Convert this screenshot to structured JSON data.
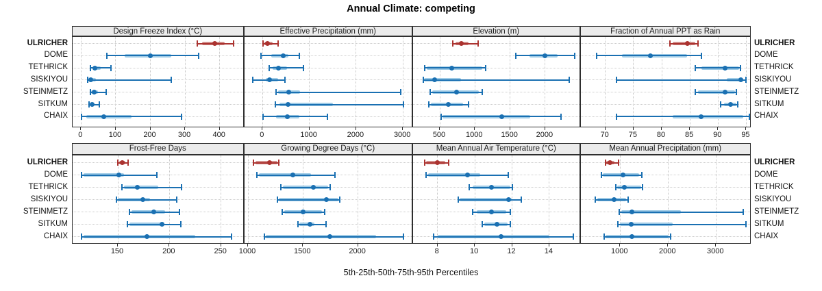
{
  "title": "Annual Climate: competing",
  "caption": "5th-25th-50th-75th-95th Percentiles",
  "percentile_levels": [
    5,
    25,
    50,
    75,
    95
  ],
  "sites": [
    "ULRICHER",
    "DOME",
    "TETHRICK",
    "SISKIYOU",
    "STEINMETZ",
    "SITKUM",
    "CHAIX"
  ],
  "highlight_site": "ULRICHER",
  "colors": {
    "highlight_dark": "#ab3330",
    "highlight_light": "#d28f8c",
    "normal_dark": "#1a70b2",
    "normal_light": "#9fcbe6",
    "strip_bg": "#ebebeb",
    "panel_border": "#2e2e2e",
    "grid": "#c8c8c8"
  },
  "chart_data": [
    {
      "type": "dotplot-percentile",
      "title": "Design Freeze Index (°C)",
      "xticks": [
        0,
        100,
        200,
        300,
        400
      ],
      "xlim": [
        -26,
        470
      ],
      "series": [
        {
          "name": "ULRICHER",
          "highlight": true,
          "percentiles": [
            335,
            350,
            385,
            415,
            440
          ]
        },
        {
          "name": "DOME",
          "highlight": false,
          "percentiles": [
            75,
            125,
            200,
            260,
            340
          ]
        },
        {
          "name": "TETHRICK",
          "highlight": false,
          "percentiles": [
            28,
            33,
            40,
            57,
            86
          ]
        },
        {
          "name": "SISKIYOU",
          "highlight": false,
          "percentiles": [
            20,
            23,
            28,
            42,
            260
          ]
        },
        {
          "name": "STEINMETZ",
          "highlight": false,
          "percentiles": [
            27,
            30,
            38,
            48,
            72
          ]
        },
        {
          "name": "SITKUM",
          "highlight": false,
          "percentiles": [
            23,
            26,
            32,
            38,
            53
          ]
        },
        {
          "name": "CHAIX",
          "highlight": false,
          "percentiles": [
            2,
            15,
            65,
            145,
            290
          ]
        }
      ]
    },
    {
      "type": "dotplot-percentile",
      "title": "Effective Precipitation (mm)",
      "xticks": [
        0,
        1000,
        2000,
        3000
      ],
      "xlim": [
        -365,
        3200
      ],
      "series": [
        {
          "name": "ULRICHER",
          "highlight": true,
          "percentiles": [
            15,
            40,
            110,
            210,
            330
          ]
        },
        {
          "name": "DOME",
          "highlight": false,
          "percentiles": [
            -30,
            185,
            440,
            550,
            780
          ]
        },
        {
          "name": "TETHRICK",
          "highlight": false,
          "percentiles": [
            135,
            210,
            340,
            530,
            880
          ]
        },
        {
          "name": "SISKIYOU",
          "highlight": false,
          "percentiles": [
            -205,
            65,
            150,
            330,
            480
          ]
        },
        {
          "name": "STEINMETZ",
          "highlight": false,
          "percentiles": [
            285,
            330,
            560,
            800,
            2960
          ]
        },
        {
          "name": "SITKUM",
          "highlight": false,
          "percentiles": [
            270,
            360,
            540,
            1500,
            3015
          ]
        },
        {
          "name": "CHAIX",
          "highlight": false,
          "percentiles": [
            15,
            290,
            530,
            780,
            1390
          ]
        }
      ]
    },
    {
      "type": "dotplot-percentile",
      "title": "Elevation (m)",
      "xticks": [
        500,
        1000,
        1500,
        2000
      ],
      "xlim": [
        130,
        2510
      ],
      "series": [
        {
          "name": "ULRICHER",
          "highlight": true,
          "percentiles": [
            690,
            720,
            810,
            910,
            1050
          ]
        },
        {
          "name": "DOME",
          "highlight": false,
          "percentiles": [
            1580,
            1775,
            2000,
            2180,
            2420
          ]
        },
        {
          "name": "TETHRICK",
          "highlight": false,
          "percentiles": [
            285,
            310,
            670,
            1105,
            1150
          ]
        },
        {
          "name": "SISKIYOU",
          "highlight": false,
          "percentiles": [
            265,
            280,
            425,
            800,
            2340
          ]
        },
        {
          "name": "STEINMETZ",
          "highlight": false,
          "percentiles": [
            365,
            395,
            735,
            1060,
            1100
          ]
        },
        {
          "name": "SITKUM",
          "highlight": false,
          "percentiles": [
            345,
            370,
            625,
            830,
            910
          ]
        },
        {
          "name": "CHAIX",
          "highlight": false,
          "percentiles": [
            515,
            540,
            1385,
            1790,
            2230
          ]
        }
      ]
    },
    {
      "type": "dotplot-percentile",
      "title": "Fraction of Annual PPT as Rain",
      "xticks": [
        70,
        75,
        80,
        85,
        90,
        95
      ],
      "xlim": [
        66,
        96
      ],
      "series": [
        {
          "name": "ULRICHER",
          "highlight": true,
          "percentiles": [
            81.5,
            82,
            84.5,
            86,
            86.5
          ]
        },
        {
          "name": "DOME",
          "highlight": false,
          "percentiles": [
            68.5,
            73,
            78,
            84.5,
            87
          ]
        },
        {
          "name": "TETHRICK",
          "highlight": false,
          "percentiles": [
            86,
            87,
            91.3,
            93.7,
            94
          ]
        },
        {
          "name": "SISKIYOU",
          "highlight": false,
          "percentiles": [
            72,
            91.5,
            94,
            94.5,
            94.9
          ]
        },
        {
          "name": "STEINMETZ",
          "highlight": false,
          "percentiles": [
            86,
            86.5,
            91.3,
            93,
            93.3
          ]
        },
        {
          "name": "SITKUM",
          "highlight": false,
          "percentiles": [
            90.5,
            91,
            92.2,
            93.3,
            93.5
          ]
        },
        {
          "name": "CHAIX",
          "highlight": false,
          "percentiles": [
            72,
            82,
            87,
            94.5,
            95.5
          ]
        }
      ]
    },
    {
      "type": "dotplot-percentile",
      "title": "Frost-Free Days",
      "xticks": [
        150,
        200,
        250
      ],
      "xlim": [
        105,
        272
      ],
      "series": [
        {
          "name": "ULRICHER",
          "highlight": true,
          "percentiles": [
            150,
            151,
            154,
            157,
            160
          ]
        },
        {
          "name": "DOME",
          "highlight": false,
          "percentiles": [
            115,
            117,
            151,
            156,
            188
          ]
        },
        {
          "name": "TETHRICK",
          "highlight": false,
          "percentiles": [
            154,
            156,
            169,
            189,
            212
          ]
        },
        {
          "name": "SISKIYOU",
          "highlight": false,
          "percentiles": [
            149,
            150,
            174,
            181,
            207
          ]
        },
        {
          "name": "STEINMETZ",
          "highlight": false,
          "percentiles": [
            161,
            163,
            185,
            196,
            210
          ]
        },
        {
          "name": "SITKUM",
          "highlight": false,
          "percentiles": [
            159,
            161,
            193,
            195,
            211
          ]
        },
        {
          "name": "CHAIX",
          "highlight": false,
          "percentiles": [
            115,
            117,
            178,
            225,
            260
          ]
        }
      ]
    },
    {
      "type": "dotplot-percentile",
      "title": "Growing Degree Days (°C)",
      "xticks": [
        1000,
        1500,
        2000
      ],
      "xlim": [
        980,
        2495
      ],
      "series": [
        {
          "name": "ULRICHER",
          "highlight": true,
          "percentiles": [
            1050,
            1070,
            1195,
            1265,
            1280
          ]
        },
        {
          "name": "DOME",
          "highlight": false,
          "percentiles": [
            1080,
            1100,
            1410,
            1575,
            1790
          ]
        },
        {
          "name": "TETHRICK",
          "highlight": false,
          "percentiles": [
            1300,
            1320,
            1595,
            1730,
            1750
          ]
        },
        {
          "name": "SISKIYOU",
          "highlight": false,
          "percentiles": [
            1265,
            1280,
            1715,
            1820,
            1835
          ]
        },
        {
          "name": "STEINMETZ",
          "highlight": false,
          "percentiles": [
            1310,
            1330,
            1500,
            1675,
            1695
          ]
        },
        {
          "name": "SITKUM",
          "highlight": false,
          "percentiles": [
            1455,
            1470,
            1565,
            1605,
            1710
          ]
        },
        {
          "name": "CHAIX",
          "highlight": false,
          "percentiles": [
            1150,
            1165,
            1745,
            2165,
            2415
          ]
        }
      ]
    },
    {
      "type": "dotplot-percentile",
      "title": "Mean Annual Air Temperature (°C)",
      "xticks": [
        8,
        10,
        12,
        14
      ],
      "xlim": [
        6.7,
        15.7
      ],
      "series": [
        {
          "name": "ULRICHER",
          "highlight": true,
          "percentiles": [
            7.3,
            7.4,
            8.0,
            8.4,
            8.6
          ]
        },
        {
          "name": "DOME",
          "highlight": false,
          "percentiles": [
            7.4,
            7.5,
            9.6,
            10.3,
            11.8
          ]
        },
        {
          "name": "TETHRICK",
          "highlight": false,
          "percentiles": [
            9.7,
            9.9,
            10.9,
            11.9,
            12.0
          ]
        },
        {
          "name": "SISKIYOU",
          "highlight": false,
          "percentiles": [
            9.1,
            9.2,
            11.8,
            12.0,
            12.5
          ]
        },
        {
          "name": "STEINMETZ",
          "highlight": false,
          "percentiles": [
            9.9,
            10.1,
            10.9,
            11.7,
            11.9
          ]
        },
        {
          "name": "SITKUM",
          "highlight": false,
          "percentiles": [
            10.4,
            10.5,
            11.2,
            11.75,
            11.9
          ]
        },
        {
          "name": "CHAIX",
          "highlight": false,
          "percentiles": [
            7.8,
            8.0,
            11.4,
            14.0,
            15.3
          ]
        }
      ]
    },
    {
      "type": "dotplot-percentile",
      "title": "Mean Annual Precipitation (mm)",
      "xticks": [
        1000,
        2000,
        3000
      ],
      "xlim": [
        210,
        3730
      ],
      "series": [
        {
          "name": "ULRICHER",
          "highlight": true,
          "percentiles": [
            690,
            715,
            785,
            875,
            970
          ]
        },
        {
          "name": "DOME",
          "highlight": false,
          "percentiles": [
            605,
            645,
            1065,
            1400,
            1450
          ]
        },
        {
          "name": "TETHRICK",
          "highlight": false,
          "percentiles": [
            905,
            940,
            1090,
            1440,
            1470
          ]
        },
        {
          "name": "SISKIYOU",
          "highlight": false,
          "percentiles": [
            485,
            520,
            875,
            1130,
            1165
          ]
        },
        {
          "name": "STEINMETZ",
          "highlight": false,
          "percentiles": [
            985,
            1020,
            1250,
            2270,
            3570
          ]
        },
        {
          "name": "SITKUM",
          "highlight": false,
          "percentiles": [
            950,
            1000,
            1225,
            2100,
            3630
          ]
        },
        {
          "name": "CHAIX",
          "highlight": false,
          "percentiles": [
            665,
            700,
            1240,
            2010,
            2050
          ]
        }
      ]
    }
  ]
}
